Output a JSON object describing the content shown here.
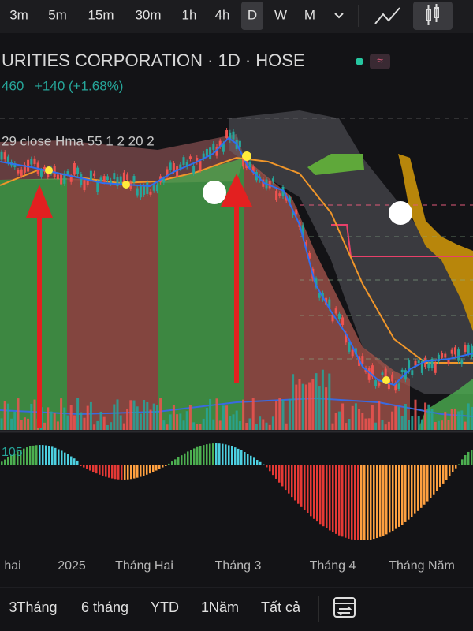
{
  "toolbar": {
    "intervals": [
      "3m",
      "5m",
      "15m",
      "30m",
      "1h",
      "4h",
      "D",
      "W",
      "M"
    ]
  },
  "legend": {
    "symbol": "URITIES CORPORATION · 1D · HOSE",
    "price": "460",
    "change": "+140 (+1.68%)",
    "indicator": "29 close Hma 55 1 2 20 2"
  },
  "oscillator": {
    "label": "105"
  },
  "time_axis": {
    "labels": [
      "hai",
      "2025",
      "Tháng Hai",
      "Tháng 3",
      "Tháng 4",
      "Tháng Năm"
    ]
  },
  "range_bar": {
    "ranges": [
      "3Tháng",
      "6 tháng",
      "YTD",
      "1Năm",
      "Tất cả"
    ]
  }
}
